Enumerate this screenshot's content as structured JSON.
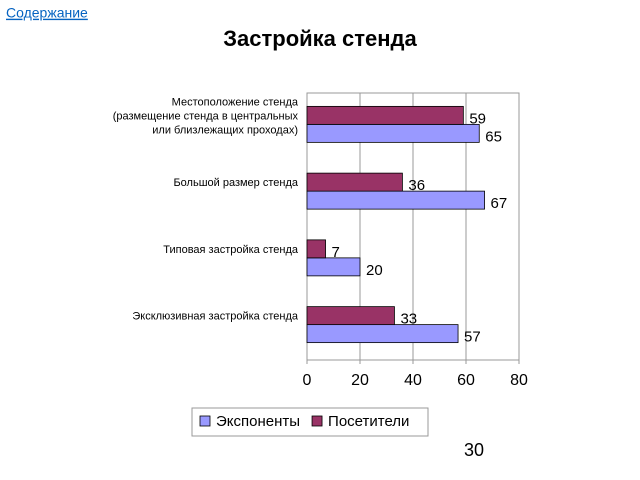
{
  "link": "Содержание",
  "page_number": "30",
  "chart_data": {
    "type": "hbar",
    "title": "Застройка стенда",
    "categories": [
      "Местоположение стенда\n(размещение стенда в центральных\nили близлежащих проходах)",
      "Большой размер стенда",
      "Типовая застройка стенда",
      "Эксклюзивная застройка стенда"
    ],
    "series": [
      {
        "name": "Экспоненты",
        "color": "#9999ff",
        "values": [
          65,
          67,
          20,
          57
        ]
      },
      {
        "name": "Посетители",
        "color": "#993366",
        "values": [
          59,
          36,
          7,
          33
        ]
      }
    ],
    "xlim": [
      0,
      80
    ],
    "xticks": [
      0,
      20,
      40,
      60,
      80
    ],
    "grid": true,
    "legend": "bottom"
  }
}
